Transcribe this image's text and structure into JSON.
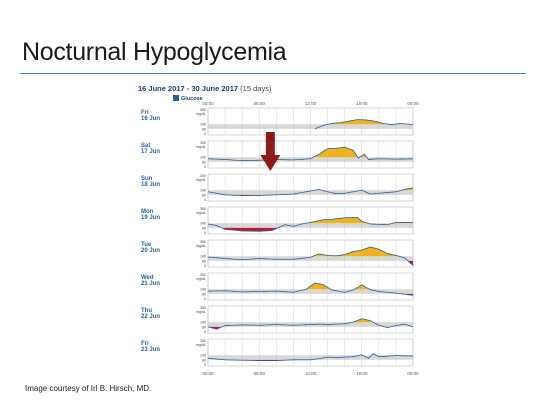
{
  "slide": {
    "title": "Nocturnal Hypoglycemia",
    "footer": "Image courtesy of Irl B. Hirsch, MD."
  },
  "report": {
    "date_range": "16 June 2017 - 30 June 2017",
    "days_label": "(15 days)",
    "legend_label": "Glucose",
    "time_ticks": [
      "00:00",
      "06:00",
      "12:00",
      "18:00",
      "00:00"
    ],
    "y_ticks": [
      "350",
      "mg/dL",
      "140",
      "80",
      "0"
    ],
    "days": [
      {
        "day": "Fri",
        "date": "16 Jun"
      },
      {
        "day": "Sat",
        "date": "17 Jun"
      },
      {
        "day": "Sun",
        "date": "18 Jun"
      },
      {
        "day": "Mon",
        "date": "19 Jun"
      },
      {
        "day": "Tue",
        "date": "20 Jun"
      },
      {
        "day": "Wed",
        "date": "21 Jun"
      },
      {
        "day": "Thu",
        "date": "22 Jun"
      },
      {
        "day": "Fri",
        "date": "23 Jun"
      }
    ]
  },
  "colors": {
    "glucose_line": "#2a5e9e",
    "high_fill": "#f0b21e",
    "low_fill": "#b81c2c",
    "target_band": "#d8d8d8",
    "arrow": "#8b1c1c",
    "day_label": "#2a5e9e"
  }
}
